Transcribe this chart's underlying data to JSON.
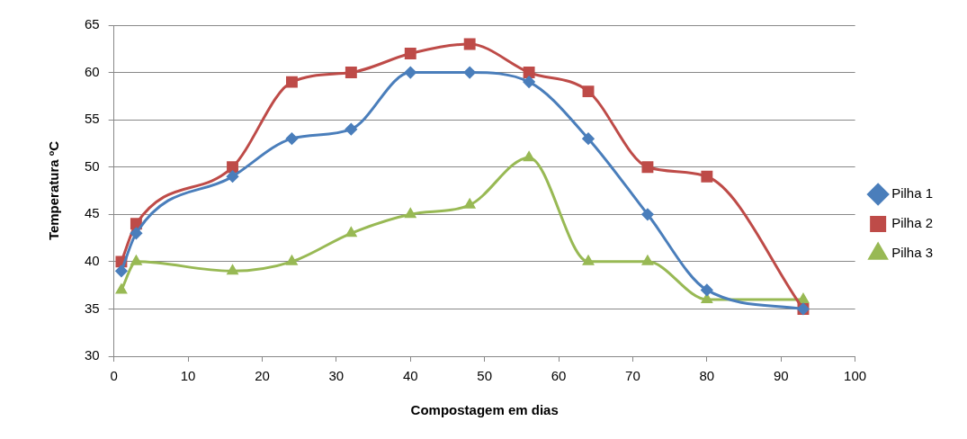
{
  "chart_data": {
    "type": "line",
    "xlabel": "Compostagem em dias",
    "ylabel": "Temperatura ºC",
    "xlim": [
      0,
      100
    ],
    "xticks": [
      0,
      10,
      20,
      30,
      40,
      50,
      60,
      70,
      80,
      90,
      100
    ],
    "ylim": [
      30,
      65
    ],
    "yticks": [
      30,
      35,
      40,
      45,
      50,
      55,
      60,
      65
    ],
    "grid": "y",
    "legend": "right",
    "series": [
      {
        "name": "Pilha 1",
        "color": "#4a7ebb",
        "marker": "diamond",
        "x": [
          1,
          3,
          16,
          24,
          32,
          40,
          48,
          56,
          64,
          72,
          80,
          93
        ],
        "values": [
          39,
          43,
          49,
          53,
          54,
          60,
          60,
          59,
          53,
          45,
          37,
          35
        ]
      },
      {
        "name": "Pilha 2",
        "color": "#be4b48",
        "marker": "square",
        "x": [
          1,
          3,
          16,
          24,
          32,
          40,
          48,
          56,
          64,
          72,
          80,
          93
        ],
        "values": [
          40,
          44,
          50,
          59,
          60,
          62,
          63,
          60,
          58,
          50,
          49,
          35
        ]
      },
      {
        "name": "Pilha 3",
        "color": "#98b954",
        "marker": "triangle",
        "x": [
          1,
          3,
          16,
          24,
          32,
          40,
          48,
          56,
          64,
          72,
          80,
          93
        ],
        "values": [
          37,
          40,
          39,
          40,
          43,
          45,
          46,
          51,
          40,
          40,
          36,
          36
        ]
      }
    ]
  }
}
